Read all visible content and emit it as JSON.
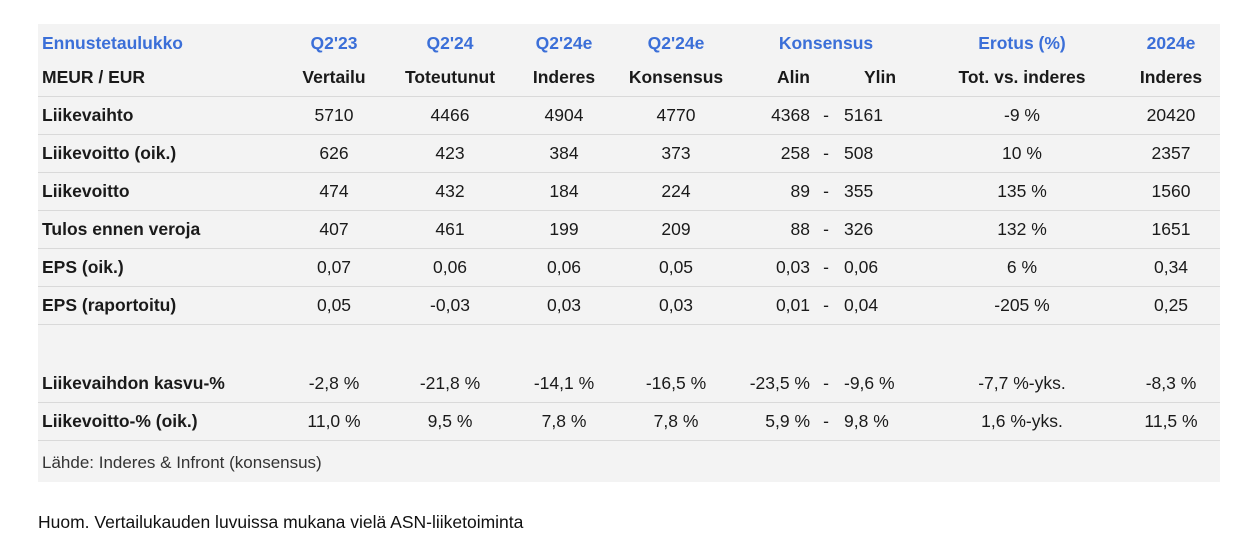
{
  "header1": {
    "title": "Ennustetaulukko",
    "cols": [
      "Q2'23",
      "Q2'24",
      "Q2'24e",
      "Q2'24e",
      "Konsensus",
      "Erotus (%)",
      "2024e"
    ]
  },
  "header2": {
    "title": "MEUR / EUR",
    "cols": [
      "Vertailu",
      "Toteutunut",
      "Inderes",
      "Konsensus",
      "Alin",
      "Ylin",
      "Tot. vs. inderes",
      "Inderes"
    ]
  },
  "rows": [
    {
      "label": "Liikevaihto",
      "q223": "5710",
      "q224": "4466",
      "inderes": "4904",
      "konsensus": "4770",
      "alin": "4368",
      "dash": "-",
      "ylin": "5161",
      "erotus": "-9 %",
      "y2024": "20420"
    },
    {
      "label": "Liikevoitto (oik.)",
      "q223": "626",
      "q224": "423",
      "inderes": "384",
      "konsensus": "373",
      "alin": "258",
      "dash": "-",
      "ylin": "508",
      "erotus": "10 %",
      "y2024": "2357"
    },
    {
      "label": "Liikevoitto",
      "q223": "474",
      "q224": "432",
      "inderes": "184",
      "konsensus": "224",
      "alin": "89",
      "dash": "-",
      "ylin": "355",
      "erotus": "135 %",
      "y2024": "1560"
    },
    {
      "label": "Tulos ennen veroja",
      "q223": "407",
      "q224": "461",
      "inderes": "199",
      "konsensus": "209",
      "alin": "88",
      "dash": "-",
      "ylin": "326",
      "erotus": "132 %",
      "y2024": "1651"
    },
    {
      "label": "EPS (oik.)",
      "q223": "0,07",
      "q224": "0,06",
      "inderes": "0,06",
      "konsensus": "0,05",
      "alin": "0,03",
      "dash": "-",
      "ylin": "0,06",
      "erotus": "6 %",
      "y2024": "0,34"
    },
    {
      "label": "EPS (raportoitu)",
      "q223": "0,05",
      "q224": "-0,03",
      "inderes": "0,03",
      "konsensus": "0,03",
      "alin": "0,01",
      "dash": "-",
      "ylin": "0,04",
      "erotus": "-205 %",
      "y2024": "0,25"
    },
    {
      "label": "Liikevaihdon kasvu-%",
      "q223": "-2,8 %",
      "q224": "-21,8 %",
      "inderes": "-14,1 %",
      "konsensus": "-16,5 %",
      "alin": "-23,5 %",
      "dash": "-",
      "ylin": "-9,6 %",
      "erotus": "-7,7 %-yks.",
      "y2024": "-8,3 %"
    },
    {
      "label": "Liikevoitto-% (oik.)",
      "q223": "11,0 %",
      "q224": "9,5 %",
      "inderes": "7,8 %",
      "konsensus": "7,8 %",
      "alin": "5,9 %",
      "dash": "-",
      "ylin": "9,8 %",
      "erotus": "1,6 %-yks.",
      "y2024": "11,5 %"
    }
  ],
  "source": "Lähde: Inderes & Infront (konsensus)",
  "note": "Huom. Vertailukauden luvuissa mukana vielä ASN-liiketoiminta"
}
